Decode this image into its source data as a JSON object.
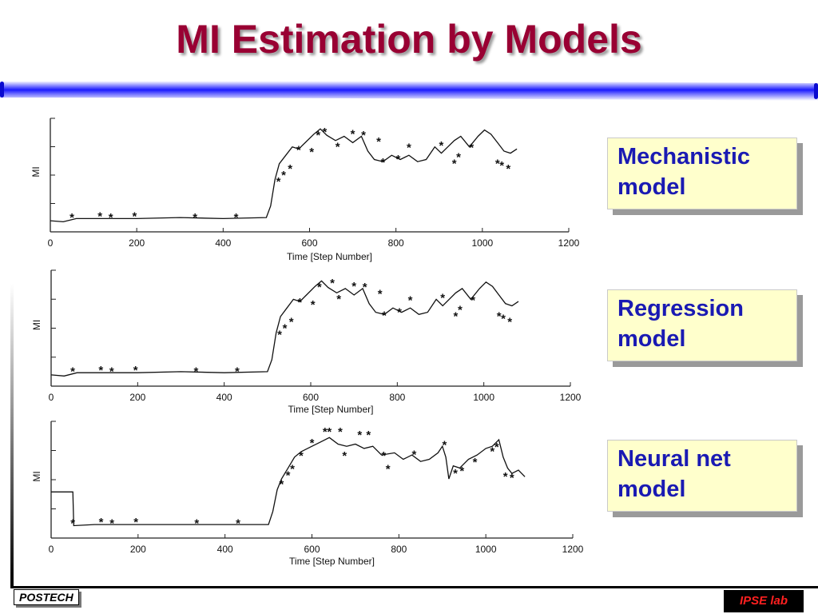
{
  "slide": {
    "title": "MI Estimation by Models",
    "footer_left": "POSTECH",
    "footer_right": "IPSE lab",
    "colors": {
      "title": "#990033",
      "box_text": "#1a1ab3",
      "box_fill": "#ffffcc",
      "bar": "#1a1aff",
      "footer_right_text": "#ff2020"
    }
  },
  "models": [
    {
      "line1": "Mechanistic",
      "line2": "model"
    },
    {
      "line1": "Regression",
      "line2": "model"
    },
    {
      "line1": "Neural net",
      "line2": "model"
    }
  ],
  "chart_data": [
    {
      "type": "line",
      "xlabel": "Time [Step Number]",
      "ylabel": "MI",
      "xlim": [
        0,
        1200
      ],
      "xticks": [
        "0",
        "200",
        "400",
        "600",
        "800",
        "1000",
        "1200"
      ],
      "yticks_labeled": [
        "MI"
      ],
      "series": [
        {
          "style": "line",
          "x": [
            0,
            30,
            60,
            100,
            150,
            200,
            300,
            400,
            500,
            510,
            520,
            530,
            545,
            560,
            575,
            590,
            610,
            625,
            640,
            660,
            680,
            700,
            720,
            735,
            750,
            770,
            790,
            810,
            830,
            850,
            870,
            890,
            905,
            920,
            935,
            950,
            970,
            990,
            1005,
            1020,
            1035,
            1050,
            1065,
            1080
          ],
          "y": [
            0.06,
            0.05,
            0.08,
            0.08,
            0.08,
            0.08,
            0.09,
            0.08,
            0.09,
            0.2,
            0.45,
            0.6,
            0.68,
            0.76,
            0.74,
            0.8,
            0.88,
            0.93,
            0.87,
            0.82,
            0.86,
            0.8,
            0.86,
            0.72,
            0.64,
            0.62,
            0.68,
            0.64,
            0.68,
            0.62,
            0.64,
            0.76,
            0.7,
            0.76,
            0.82,
            0.86,
            0.76,
            0.86,
            0.92,
            0.88,
            0.8,
            0.72,
            0.7,
            0.74
          ]
        },
        {
          "style": "markers",
          "x": [
            50,
            115,
            140,
            195,
            335,
            430,
            528,
            540,
            555,
            575,
            605,
            620,
            635,
            665,
            700,
            725,
            760,
            770,
            805,
            830,
            905,
            935,
            945,
            975,
            1035,
            1045,
            1060
          ],
          "y": [
            0.1,
            0.11,
            0.1,
            0.11,
            0.1,
            0.1,
            0.44,
            0.5,
            0.56,
            0.74,
            0.72,
            0.88,
            0.91,
            0.77,
            0.89,
            0.88,
            0.82,
            0.62,
            0.65,
            0.76,
            0.78,
            0.61,
            0.67,
            0.76,
            0.61,
            0.59,
            0.56
          ]
        }
      ]
    },
    {
      "type": "line",
      "xlabel": "Time [Step Number]",
      "ylabel": "MI",
      "xlim": [
        0,
        1200
      ],
      "xticks": [
        "0",
        "200",
        "400",
        "600",
        "800",
        "1000",
        "1200"
      ],
      "yticks_labeled": [
        "MI"
      ],
      "series": [
        {
          "style": "line",
          "x": [
            0,
            30,
            60,
            100,
            150,
            200,
            300,
            400,
            500,
            510,
            520,
            530,
            545,
            560,
            575,
            590,
            610,
            625,
            640,
            660,
            680,
            700,
            720,
            735,
            750,
            770,
            790,
            810,
            830,
            850,
            870,
            890,
            905,
            920,
            935,
            950,
            970,
            990,
            1005,
            1020,
            1035,
            1050,
            1065,
            1080
          ],
          "y": [
            0.06,
            0.05,
            0.08,
            0.08,
            0.08,
            0.08,
            0.09,
            0.08,
            0.09,
            0.2,
            0.45,
            0.6,
            0.68,
            0.76,
            0.74,
            0.8,
            0.88,
            0.93,
            0.87,
            0.82,
            0.86,
            0.8,
            0.86,
            0.72,
            0.64,
            0.62,
            0.68,
            0.64,
            0.68,
            0.62,
            0.64,
            0.76,
            0.7,
            0.76,
            0.82,
            0.86,
            0.76,
            0.86,
            0.92,
            0.88,
            0.8,
            0.72,
            0.7,
            0.74
          ]
        },
        {
          "style": "markers",
          "x": [
            50,
            115,
            140,
            195,
            335,
            430,
            528,
            540,
            555,
            575,
            605,
            620,
            650,
            665,
            700,
            725,
            760,
            770,
            805,
            830,
            905,
            935,
            945,
            975,
            1035,
            1045,
            1060
          ],
          "y": [
            0.1,
            0.11,
            0.1,
            0.11,
            0.1,
            0.1,
            0.44,
            0.5,
            0.56,
            0.74,
            0.72,
            0.88,
            0.92,
            0.77,
            0.89,
            0.88,
            0.82,
            0.62,
            0.65,
            0.76,
            0.78,
            0.61,
            0.67,
            0.76,
            0.61,
            0.59,
            0.56
          ]
        }
      ]
    },
    {
      "type": "line",
      "xlabel": "Time [Step Number]",
      "ylabel": "MI",
      "xlim": [
        0,
        1200
      ],
      "xticks": [
        "0",
        "200",
        "400",
        "600",
        "800",
        "1000",
        "1200"
      ],
      "yticks_labeled": [
        "MI"
      ],
      "series": [
        {
          "style": "line",
          "x": [
            0,
            50,
            52,
            100,
            150,
            200,
            300,
            400,
            500,
            510,
            520,
            530,
            545,
            560,
            575,
            600,
            620,
            640,
            660,
            680,
            700,
            720,
            740,
            760,
            790,
            810,
            830,
            850,
            870,
            890,
            900,
            908,
            915,
            925,
            940,
            960,
            980,
            1000,
            1015,
            1030,
            1040,
            1050,
            1060,
            1075,
            1090
          ],
          "y": [
            0.38,
            0.38,
            0.07,
            0.08,
            0.08,
            0.08,
            0.08,
            0.08,
            0.08,
            0.2,
            0.4,
            0.5,
            0.6,
            0.7,
            0.75,
            0.8,
            0.84,
            0.88,
            0.82,
            0.8,
            0.82,
            0.78,
            0.8,
            0.72,
            0.74,
            0.68,
            0.72,
            0.66,
            0.68,
            0.74,
            0.8,
            0.7,
            0.5,
            0.62,
            0.6,
            0.68,
            0.72,
            0.78,
            0.8,
            0.86,
            0.7,
            0.6,
            0.55,
            0.58,
            0.52
          ]
        },
        {
          "style": "markers",
          "x": [
            50,
            115,
            140,
            195,
            335,
            430,
            530,
            545,
            555,
            575,
            600,
            630,
            640,
            665,
            675,
            710,
            730,
            765,
            775,
            835,
            905,
            930,
            945,
            975,
            1015,
            1025,
            1045,
            1060
          ],
          "y": [
            0.1,
            0.11,
            0.1,
            0.11,
            0.1,
            0.1,
            0.46,
            0.54,
            0.6,
            0.72,
            0.84,
            0.94,
            0.94,
            0.94,
            0.72,
            0.91,
            0.91,
            0.72,
            0.6,
            0.73,
            0.82,
            0.56,
            0.58,
            0.66,
            0.76,
            0.8,
            0.53,
            0.52
          ]
        }
      ]
    }
  ]
}
